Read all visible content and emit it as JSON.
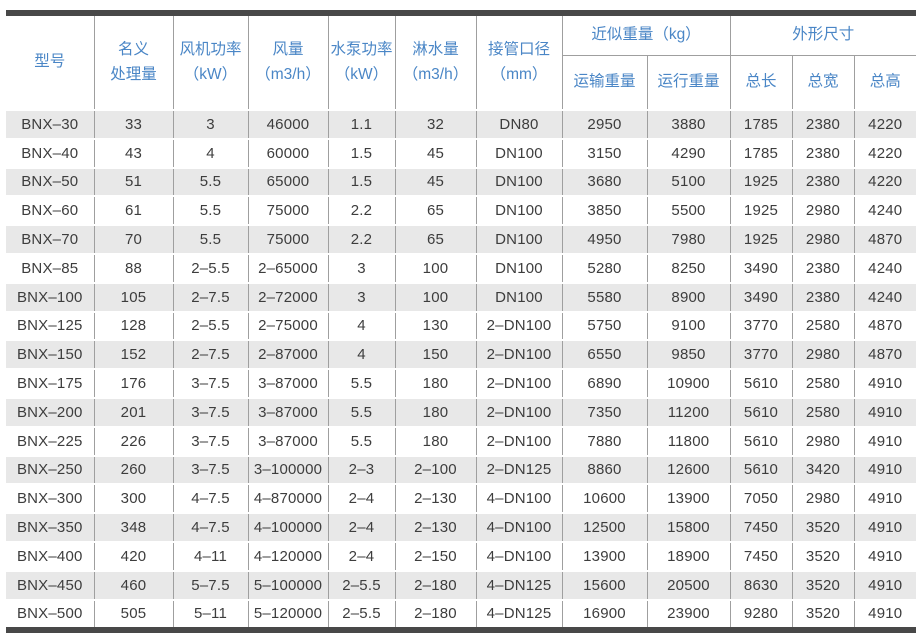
{
  "colors": {
    "header_text": "#4a86c6",
    "body_text": "#3d3d3d",
    "stripe_gray": "#e8e8e8",
    "grid_line": "#9f9f9f",
    "rule_bar": "#484848"
  },
  "table": {
    "headers": {
      "model": "型号",
      "nominal_capacity": "名义\n处理量",
      "fan_power": "风机功率\n（kW）",
      "air_volume": "风量\n（m3/h）",
      "pump_power": "水泵功率\n（kW）",
      "spray_water_volume": "淋水量\n（m3/h）",
      "pipe_diameter": "接管口径\n（mm）",
      "approx_weight_group": "近似重量（kg）",
      "transport_weight": "运输重量",
      "operating_weight": "运行重量",
      "dimensions_group": "外形尺寸",
      "total_length": "总长",
      "total_width": "总宽",
      "total_height": "总高"
    },
    "rows": [
      [
        "BNX–30",
        "33",
        "3",
        "46000",
        "1.1",
        "32",
        "DN80",
        "2950",
        "3880",
        "1785",
        "2380",
        "4220"
      ],
      [
        "BNX–40",
        "43",
        "4",
        "60000",
        "1.5",
        "45",
        "DN100",
        "3150",
        "4290",
        "1785",
        "2380",
        "4220"
      ],
      [
        "BNX–50",
        "51",
        "5.5",
        "65000",
        "1.5",
        "45",
        "DN100",
        "3680",
        "5100",
        "1925",
        "2380",
        "4220"
      ],
      [
        "BNX–60",
        "61",
        "5.5",
        "75000",
        "2.2",
        "65",
        "DN100",
        "3850",
        "5500",
        "1925",
        "2980",
        "4240"
      ],
      [
        "BNX–70",
        "70",
        "5.5",
        "75000",
        "2.2",
        "65",
        "DN100",
        "4950",
        "7980",
        "1925",
        "2980",
        "4870"
      ],
      [
        "BNX–85",
        "88",
        "2–5.5",
        "2–65000",
        "3",
        "100",
        "DN100",
        "5280",
        "8250",
        "3490",
        "2380",
        "4240"
      ],
      [
        "BNX–100",
        "105",
        "2–7.5",
        "2–72000",
        "3",
        "100",
        "DN100",
        "5580",
        "8900",
        "3490",
        "2380",
        "4240"
      ],
      [
        "BNX–125",
        "128",
        "2–5.5",
        "2–75000",
        "4",
        "130",
        "2–DN100",
        "5750",
        "9100",
        "3770",
        "2580",
        "4870"
      ],
      [
        "BNX–150",
        "152",
        "2–7.5",
        "2–87000",
        "4",
        "150",
        "2–DN100",
        "6550",
        "9850",
        "3770",
        "2980",
        "4870"
      ],
      [
        "BNX–175",
        "176",
        "3–7.5",
        "3–87000",
        "5.5",
        "180",
        "2–DN100",
        "6890",
        "10900",
        "5610",
        "2580",
        "4910"
      ],
      [
        "BNX–200",
        "201",
        "3–7.5",
        "3–87000",
        "5.5",
        "180",
        "2–DN100",
        "7350",
        "11200",
        "5610",
        "2580",
        "4910"
      ],
      [
        "BNX–225",
        "226",
        "3–7.5",
        "3–87000",
        "5.5",
        "180",
        "2–DN100",
        "7880",
        "11800",
        "5610",
        "2980",
        "4910"
      ],
      [
        "BNX–250",
        "260",
        "3–7.5",
        "3–100000",
        "2–3",
        "2–100",
        "2–DN125",
        "8860",
        "12600",
        "5610",
        "3420",
        "4910"
      ],
      [
        "BNX–300",
        "300",
        "4–7.5",
        "4–870000",
        "2–4",
        "2–130",
        "4–DN100",
        "10600",
        "13900",
        "7050",
        "2980",
        "4910"
      ],
      [
        "BNX–350",
        "348",
        "4–7.5",
        "4–100000",
        "2–4",
        "2–130",
        "4–DN100",
        "12500",
        "15800",
        "7450",
        "3520",
        "4910"
      ],
      [
        "BNX–400",
        "420",
        "4–11",
        "4–120000",
        "2–4",
        "2–150",
        "4–DN100",
        "13900",
        "18900",
        "7450",
        "3520",
        "4910"
      ],
      [
        "BNX–450",
        "460",
        "5–7.5",
        "5–100000",
        "2–5.5",
        "2–180",
        "4–DN125",
        "15600",
        "20500",
        "8630",
        "3520",
        "4910"
      ],
      [
        "BNX–500",
        "505",
        "5–11",
        "5–120000",
        "2–5.5",
        "2–180",
        "4–DN125",
        "16900",
        "23900",
        "9280",
        "3520",
        "4910"
      ]
    ]
  }
}
